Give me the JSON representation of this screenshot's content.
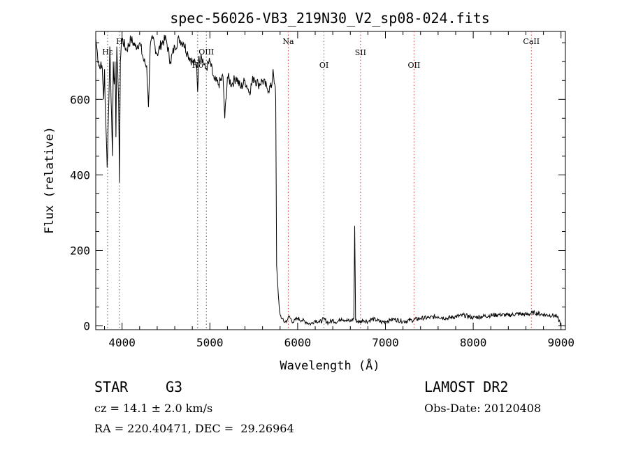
{
  "chart_data": {
    "type": "line",
    "title": "spec-56026-VB3_219N30_V2_sp08-024.fits",
    "xlabel": "Wavelength (Å)",
    "ylabel": "Flux (relative)",
    "xlim": [
      3700,
      9050
    ],
    "ylim": [
      -10,
      780
    ],
    "xticks": [
      4000,
      5000,
      6000,
      7000,
      8000,
      9000
    ],
    "yticks": [
      0,
      200,
      400,
      600
    ],
    "grid": false,
    "legend": "none",
    "series": [
      {
        "x": [
          3700,
          3710,
          3720,
          3730,
          3740,
          3750,
          3760,
          3770,
          3780,
          3790,
          3800,
          3810,
          3820,
          3830,
          3840,
          3850,
          3860,
          3870,
          3880,
          3890,
          3900,
          3910,
          3920,
          3930,
          3940,
          3950,
          3960,
          3970,
          3980,
          3990,
          4000,
          4050,
          4100,
          4150,
          4200,
          4250,
          4280,
          4300,
          4320,
          4350,
          4400,
          4450,
          4500,
          4550,
          4600,
          4650,
          4700,
          4750,
          4800,
          4850,
          4861,
          4870,
          4900,
          4950,
          5000,
          5050,
          5100,
          5150,
          5170,
          5200,
          5250,
          5300,
          5350,
          5400,
          5450,
          5500,
          5550,
          5600,
          5650,
          5700,
          5720,
          5740,
          5750,
          5755,
          5760,
          5770,
          5780,
          5790,
          5800,
          5820,
          5850,
          5880,
          5900,
          5950,
          6000,
          6050,
          6100,
          6150,
          6200,
          6250,
          6300,
          6350,
          6400,
          6450,
          6500,
          6550,
          6600,
          6640,
          6650,
          6660,
          6700,
          6750,
          6800,
          6850,
          6900,
          6950,
          7000,
          7050,
          7100,
          7200,
          7300,
          7400,
          7500,
          7600,
          7700,
          7800,
          7900,
          8000,
          8100,
          8200,
          8300,
          8400,
          8500,
          8600,
          8700,
          8800,
          8900,
          8950,
          9000
        ],
        "values": [
          760,
          740,
          720,
          700,
          690,
          680,
          700,
          690,
          650,
          600,
          680,
          560,
          500,
          420,
          520,
          600,
          740,
          650,
          560,
          450,
          700,
          640,
          700,
          500,
          740,
          680,
          600,
          380,
          700,
          740,
          760,
          730,
          760,
          740,
          750,
          700,
          690,
          580,
          740,
          760,
          720,
          750,
          760,
          700,
          740,
          760,
          750,
          720,
          700,
          690,
          620,
          700,
          720,
          680,
          700,
          650,
          640,
          660,
          550,
          660,
          640,
          660,
          630,
          650,
          620,
          660,
          640,
          650,
          630,
          630,
          680,
          640,
          600,
          400,
          160,
          120,
          80,
          50,
          30,
          20,
          10,
          15,
          25,
          10,
          20,
          15,
          10,
          5,
          15,
          10,
          18,
          8,
          15,
          10,
          20,
          15,
          12,
          20,
          265,
          15,
          10,
          15,
          12,
          18,
          15,
          10,
          12,
          15,
          18,
          12,
          15,
          20,
          22,
          25,
          20,
          25,
          28,
          22,
          25,
          28,
          30,
          28,
          32,
          30,
          35,
          30,
          28,
          25,
          5
        ]
      }
    ],
    "annotations": [
      "Hε",
      "H",
      "Hδ",
      "OIII",
      "Na",
      "OI",
      "SII",
      "OII",
      "CaII"
    ],
    "line_markers": [
      {
        "label": "Hε",
        "x": 3835
      },
      {
        "label": "H",
        "x": 3970
      },
      {
        "label": "Hδ",
        "x": 4861
      },
      {
        "label": "OIII",
        "x": 4960
      },
      {
        "label": "Na",
        "x": 5893
      },
      {
        "label": "OI",
        "x": 6300
      },
      {
        "label": "SII",
        "x": 6716
      },
      {
        "label": "OII",
        "x": 7325
      },
      {
        "label": "CaII",
        "x": 8662
      }
    ]
  },
  "info": {
    "object_type": "STAR",
    "subclass": "G3",
    "survey": "LAMOST DR2",
    "redshift": "cz = 14.1 ± 2.0 km/s",
    "obs_date": "Obs-Date: 20120408",
    "coords": "RA = 220.40471, DEC =  29.26964"
  }
}
